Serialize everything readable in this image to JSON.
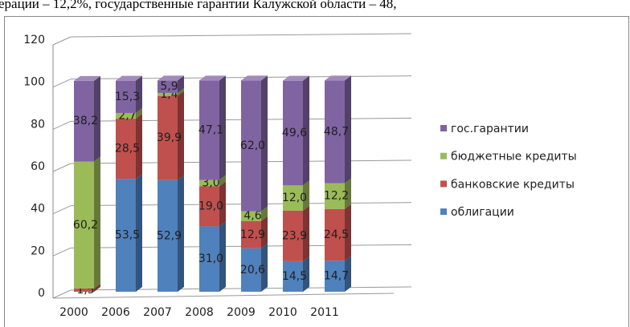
{
  "caption": "ерации – 12,2%, государственные гарантии Калужской области – 48,",
  "chart_data": {
    "type": "bar3d_stacked",
    "categories": [
      "2000",
      "2006",
      "2007",
      "2008",
      "2009",
      "2010",
      "2011"
    ],
    "series": [
      {
        "name": "облигации",
        "color": "#4f81bd",
        "values": [
          0,
          53.5,
          52.9,
          31.0,
          20.6,
          14.5,
          14.7
        ],
        "value_labels": [
          null,
          "53,5",
          "52,9",
          "31,0",
          "20,6",
          "14,5",
          "14,7"
        ]
      },
      {
        "name": "банковские кредиты",
        "color": "#c0504d",
        "values": [
          1.5,
          28.5,
          39.9,
          19.0,
          12.9,
          23.9,
          24.5
        ],
        "value_labels": [
          "1,5",
          "28,5",
          "39,9",
          "19,0",
          "12,9",
          "23,9",
          "24,5"
        ]
      },
      {
        "name": "бюджетные кредиты",
        "color": "#9bbb59",
        "values": [
          60.2,
          2.7,
          1.4,
          3.0,
          4.6,
          12.0,
          12.2
        ],
        "value_labels": [
          "60,2",
          "2,7",
          "1,4",
          "3,0",
          "4,6",
          "12,0",
          "12,2"
        ]
      },
      {
        "name": "гос.гарантии",
        "color": "#8064a2",
        "values": [
          38.2,
          15.3,
          5.9,
          47.1,
          62.0,
          49.6,
          48.7
        ],
        "value_labels": [
          "38,2",
          "15,3",
          "5,9",
          "47,1",
          "62,0",
          "49,6",
          "48,7"
        ]
      }
    ],
    "ylim": [
      0,
      120
    ],
    "yticks": [
      0,
      20,
      40,
      60,
      80,
      100,
      120
    ],
    "grid": true,
    "legend": "right"
  }
}
